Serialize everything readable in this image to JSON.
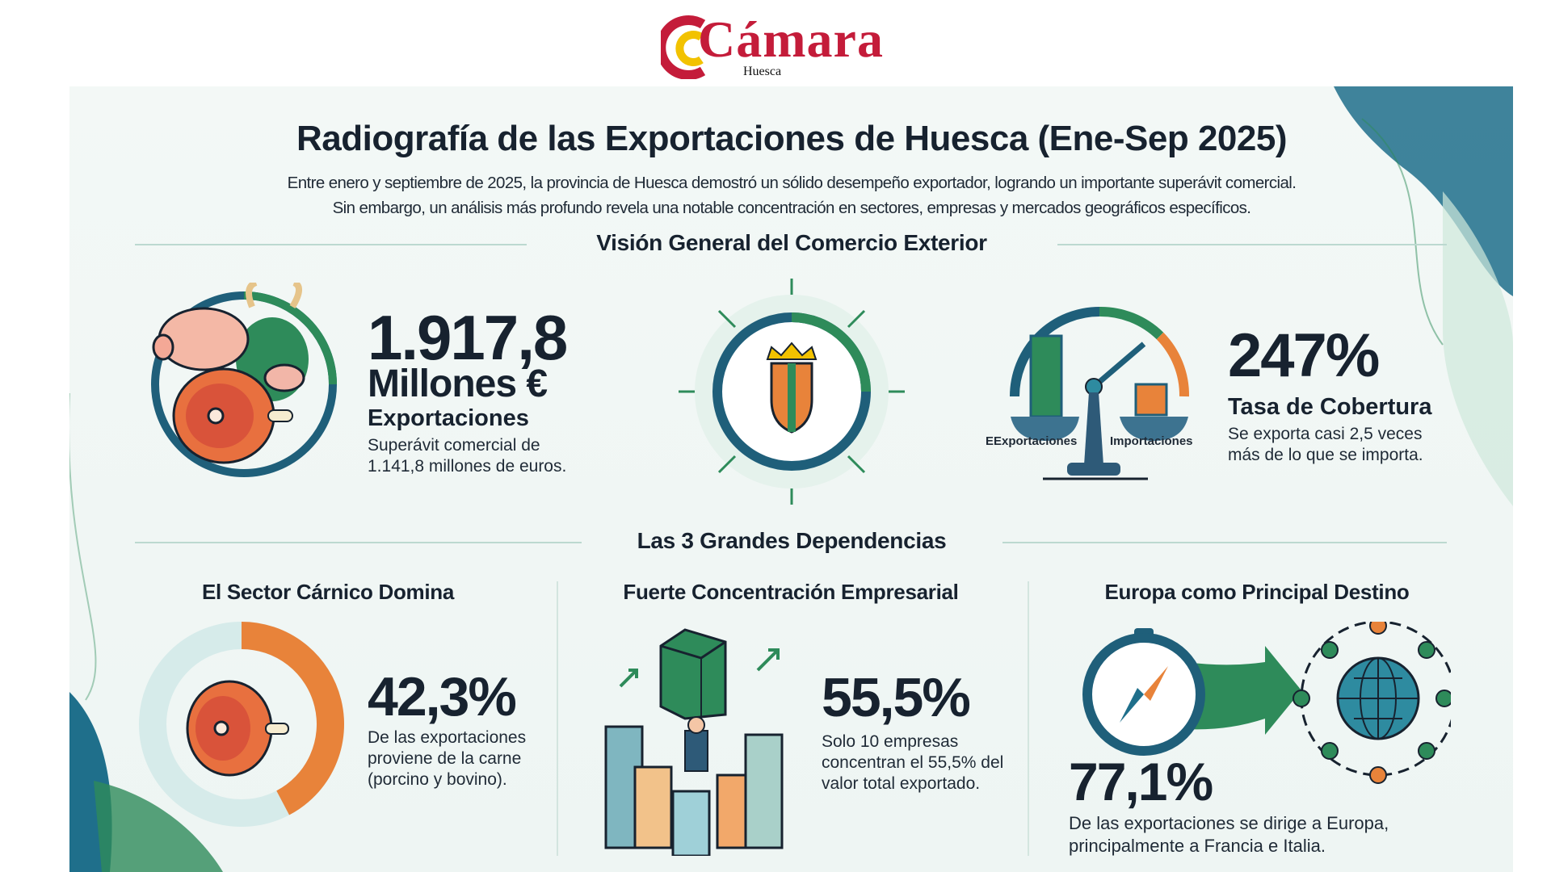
{
  "logo": {
    "text": "Cámara",
    "subtitle": "Huesca"
  },
  "title": "Radiografía de las Exportaciones de Huesca (Ene-Sep 2025)",
  "intro": [
    "Entre enero y septiembre de 2025, la provincia de Huesca demostró un sólido desempeño exportador, logrando un importante superávit comercial.",
    "Sin embargo, un análisis más profundo revela una notable concentración en sectores, empresas y mercados geográficos específicos."
  ],
  "overview": {
    "heading": "Visión General del Comercio Exterior",
    "exports": {
      "value": "1.917,8",
      "unit": "Millones €",
      "label": "Exportaciones",
      "desc": [
        "Superávit comercial de",
        "1.141,8 millones de euros."
      ]
    },
    "coverage": {
      "value": "247%",
      "label": "Tasa de Cobertura",
      "desc": [
        "Se exporta casi 2,5 veces",
        "más de lo que se importa."
      ],
      "scale_left": "EExportaciones",
      "scale_right": "Importaciones"
    }
  },
  "dependencies": {
    "heading": "Las 3 Grandes Dependencias",
    "items": [
      {
        "title": "El Sector Cárnico Domina",
        "value": "42,3%",
        "fraction": 0.423,
        "desc": [
          "De las exportaciones",
          "proviene de la carne",
          "(porcino y bovino)."
        ]
      },
      {
        "title": "Fuerte Concentración Empresarial",
        "value": "55,5%",
        "desc": [
          "Solo 10 empresas",
          "concentran el 55,5% del",
          "valor total exportado."
        ]
      },
      {
        "title": "Europa como Principal Destino",
        "value": "77,1%",
        "desc": [
          "De las exportaciones se dirige a Europa,",
          "principalmente a Francia e Italia."
        ]
      }
    ]
  },
  "colors": {
    "navy": "#17222f",
    "green": "#2e8b5a",
    "teal": "#1f6f8b",
    "orange": "#e8833a",
    "brand_red": "#c41c3a",
    "brand_yellow": "#f2c200"
  }
}
